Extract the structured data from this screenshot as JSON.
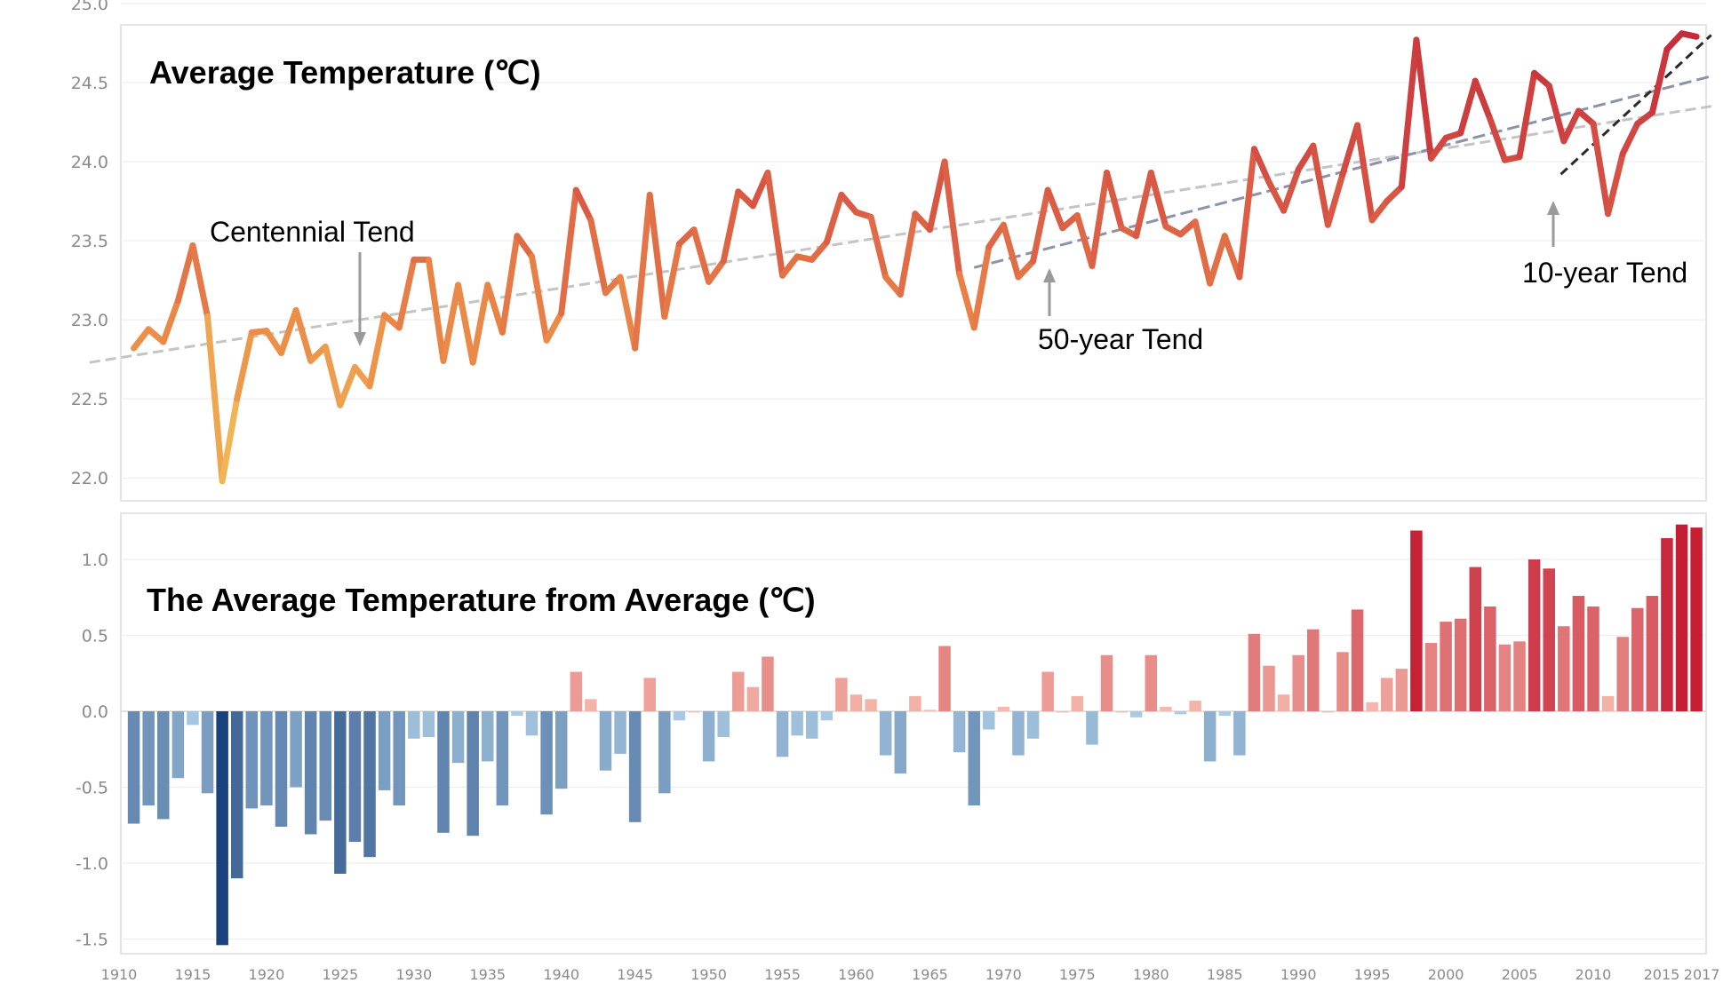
{
  "chart_data": [
    {
      "type": "line",
      "title": "Average Temperature (℃)",
      "ylim": [
        21.9,
        25.0
      ],
      "y_ticks": [
        "25.0",
        "24.5",
        "24.0",
        "23.5",
        "23.0",
        "22.5",
        "22.0"
      ],
      "x_start": 1910,
      "series": [
        {
          "values": [
            22.82,
            22.94,
            22.86,
            23.12,
            23.47,
            23.02,
            21.98,
            22.5,
            22.92,
            22.93,
            22.79,
            23.06,
            22.74,
            22.83,
            22.46,
            22.7,
            22.58,
            23.03,
            22.95,
            23.38,
            23.38,
            22.74,
            23.22,
            22.73,
            23.22,
            22.92,
            23.53,
            23.4,
            22.87,
            23.04,
            23.82,
            23.63,
            23.17,
            23.27,
            22.82,
            23.79,
            23.02,
            23.48,
            23.57,
            23.24,
            23.37,
            23.81,
            23.72,
            23.93,
            23.28,
            23.4,
            23.38,
            23.49,
            23.79,
            23.68,
            23.65,
            23.27,
            23.16,
            23.67,
            23.57,
            24.0,
            23.29,
            22.95,
            23.46,
            23.6,
            23.27,
            23.37,
            23.82,
            23.58,
            23.66,
            23.34,
            23.93,
            23.58,
            23.53,
            23.93,
            23.59,
            23.54,
            23.62,
            23.23,
            23.53,
            23.27,
            24.08,
            23.87,
            23.69,
            23.95,
            24.1,
            23.6,
            23.92,
            24.23,
            23.63,
            23.75,
            23.84,
            24.77,
            24.02,
            24.15,
            24.18,
            24.51,
            24.27,
            24.01,
            24.03,
            24.56,
            24.48,
            24.13,
            24.32,
            24.24,
            23.67,
            24.05,
            24.24,
            24.31,
            24.71,
            24.81,
            24.79
          ]
        }
      ],
      "trend_lines": [
        {
          "label": "Centennial Tend",
          "from": [
            1908,
            22.73
          ],
          "to": [
            2018,
            24.35
          ]
        },
        {
          "label": "50-year Tend",
          "from": [
            1968,
            23.33
          ],
          "to": [
            2018,
            24.54
          ]
        },
        {
          "label": "10-year Tend",
          "from": [
            2007.8,
            23.92
          ],
          "to": [
            2018,
            24.8
          ]
        }
      ],
      "annotations": [
        "Centennial Tend",
        "50-year Tend",
        "10-year Tend"
      ]
    },
    {
      "type": "bar",
      "title": "The Average Temperature from Average (℃)",
      "ylim": [
        -1.55,
        1.25
      ],
      "y_ticks": [
        "1.0",
        "0.5",
        "0.0",
        "-0.5",
        "-1.0",
        "-1.5"
      ],
      "x_ticks": [
        "1910",
        "1915",
        "1920",
        "1925",
        "1930",
        "1935",
        "1940",
        "1945",
        "1950",
        "1955",
        "1960",
        "1965",
        "1970",
        "1975",
        "1980",
        "1985",
        "1990",
        "1995",
        "2000",
        "2005",
        "2010",
        "2015",
        "2017"
      ],
      "x_start": 1911,
      "values": [
        -0.74,
        -0.62,
        -0.71,
        -0.44,
        -0.09,
        -0.54,
        -1.54,
        -1.1,
        -0.64,
        -0.62,
        -0.76,
        -0.5,
        -0.81,
        -0.72,
        -1.07,
        -0.86,
        -0.96,
        -0.52,
        -0.62,
        -0.18,
        -0.17,
        -0.8,
        -0.34,
        -0.82,
        -0.33,
        -0.62,
        -0.03,
        -0.16,
        -0.68,
        -0.51,
        0.26,
        0.08,
        -0.39,
        -0.28,
        -0.73,
        0.22,
        -0.54,
        -0.06,
        0.0,
        -0.33,
        -0.17,
        0.26,
        0.16,
        0.36,
        -0.3,
        -0.16,
        -0.18,
        -0.06,
        0.22,
        0.11,
        0.08,
        -0.29,
        -0.41,
        0.1,
        0.01,
        0.43,
        -0.27,
        -0.62,
        -0.12,
        0.03,
        -0.29,
        -0.18,
        0.26,
        0.0,
        0.1,
        -0.22,
        0.37,
        0.0,
        -0.04,
        0.37,
        0.03,
        -0.02,
        0.07,
        -0.33,
        -0.03,
        -0.29,
        0.51,
        0.3,
        0.11,
        0.37,
        0.54,
        0.0,
        0.39,
        0.67,
        0.06,
        0.22,
        0.28,
        1.19,
        0.45,
        0.59,
        0.61,
        0.95,
        0.69,
        0.44,
        0.46,
        1.0,
        0.94,
        0.56,
        0.76,
        0.69,
        0.1,
        0.49,
        0.68,
        0.76,
        1.14,
        1.23,
        1.21
      ]
    }
  ]
}
